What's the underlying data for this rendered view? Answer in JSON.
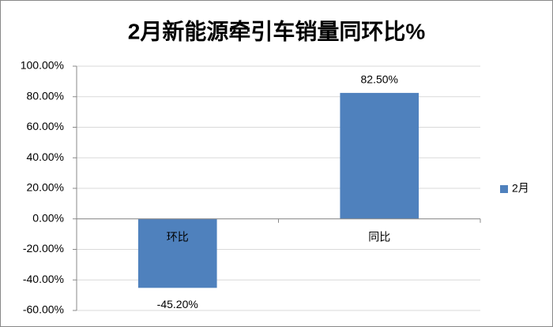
{
  "chart_data": {
    "type": "bar",
    "title": "2月新能源牵引车销量同环比%",
    "categories": [
      "环比",
      "同比"
    ],
    "series": [
      {
        "name": "2月",
        "color": "#4f81bd",
        "values": [
          -45.2,
          82.5
        ],
        "value_labels": [
          "-45.20%",
          "82.50%"
        ]
      }
    ],
    "ylim": [
      -60,
      100
    ],
    "yticks": [
      {
        "value": -60,
        "label": "-60.00%"
      },
      {
        "value": -40,
        "label": "-40.00%"
      },
      {
        "value": -20,
        "label": "-20.00%"
      },
      {
        "value": 0,
        "label": "0.00%"
      },
      {
        "value": 20,
        "label": "20.00%"
      },
      {
        "value": 40,
        "label": "40.00%"
      },
      {
        "value": 60,
        "label": "60.00%"
      },
      {
        "value": 80,
        "label": "80.00%"
      },
      {
        "value": 100,
        "label": "100.00%"
      }
    ],
    "grid": true,
    "legend": "right"
  }
}
